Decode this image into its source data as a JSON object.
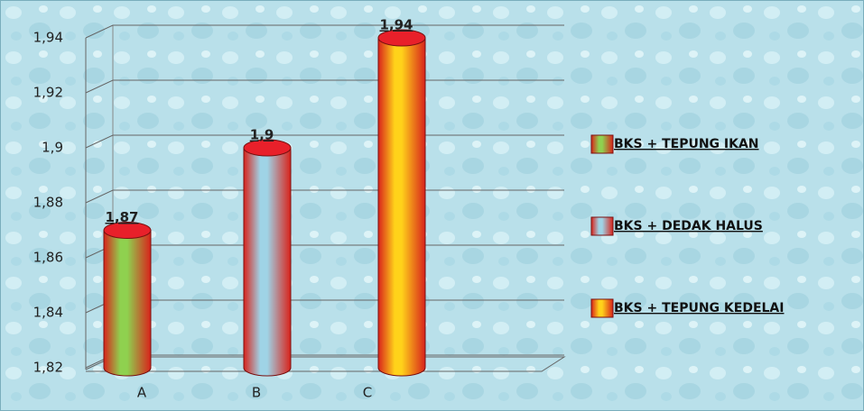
{
  "chart_data": {
    "type": "cylinder-bar",
    "categories": [
      "A",
      "B",
      "C"
    ],
    "series": [
      {
        "name": "BKS + TEPUNG IKAN",
        "color": "#8fd14f",
        "values": [
          1.87,
          null,
          null
        ],
        "value_labels": [
          "1,87",
          null,
          null
        ]
      },
      {
        "name": "BKS + DEDAK HALUS",
        "color": "#9fd3e6",
        "values": [
          null,
          1.9,
          null
        ],
        "value_labels": [
          null,
          "1,9",
          null
        ]
      },
      {
        "name": "BKS + TEPUNG KEDELAI",
        "color": "#ffd21a",
        "values": [
          null,
          null,
          1.94
        ],
        "value_labels": [
          null,
          null,
          "1,94"
        ]
      }
    ],
    "ylim": [
      1.82,
      1.94
    ],
    "yticks": [
      {
        "value": 1.82,
        "label": "1,82"
      },
      {
        "value": 1.84,
        "label": "1,84"
      },
      {
        "value": 1.86,
        "label": "1,86"
      },
      {
        "value": 1.88,
        "label": "1,88"
      },
      {
        "value": 1.9,
        "label": "1,9"
      },
      {
        "value": 1.92,
        "label": "1,92"
      },
      {
        "value": 1.94,
        "label": "1,94"
      }
    ],
    "grid": true,
    "legend": "right"
  }
}
